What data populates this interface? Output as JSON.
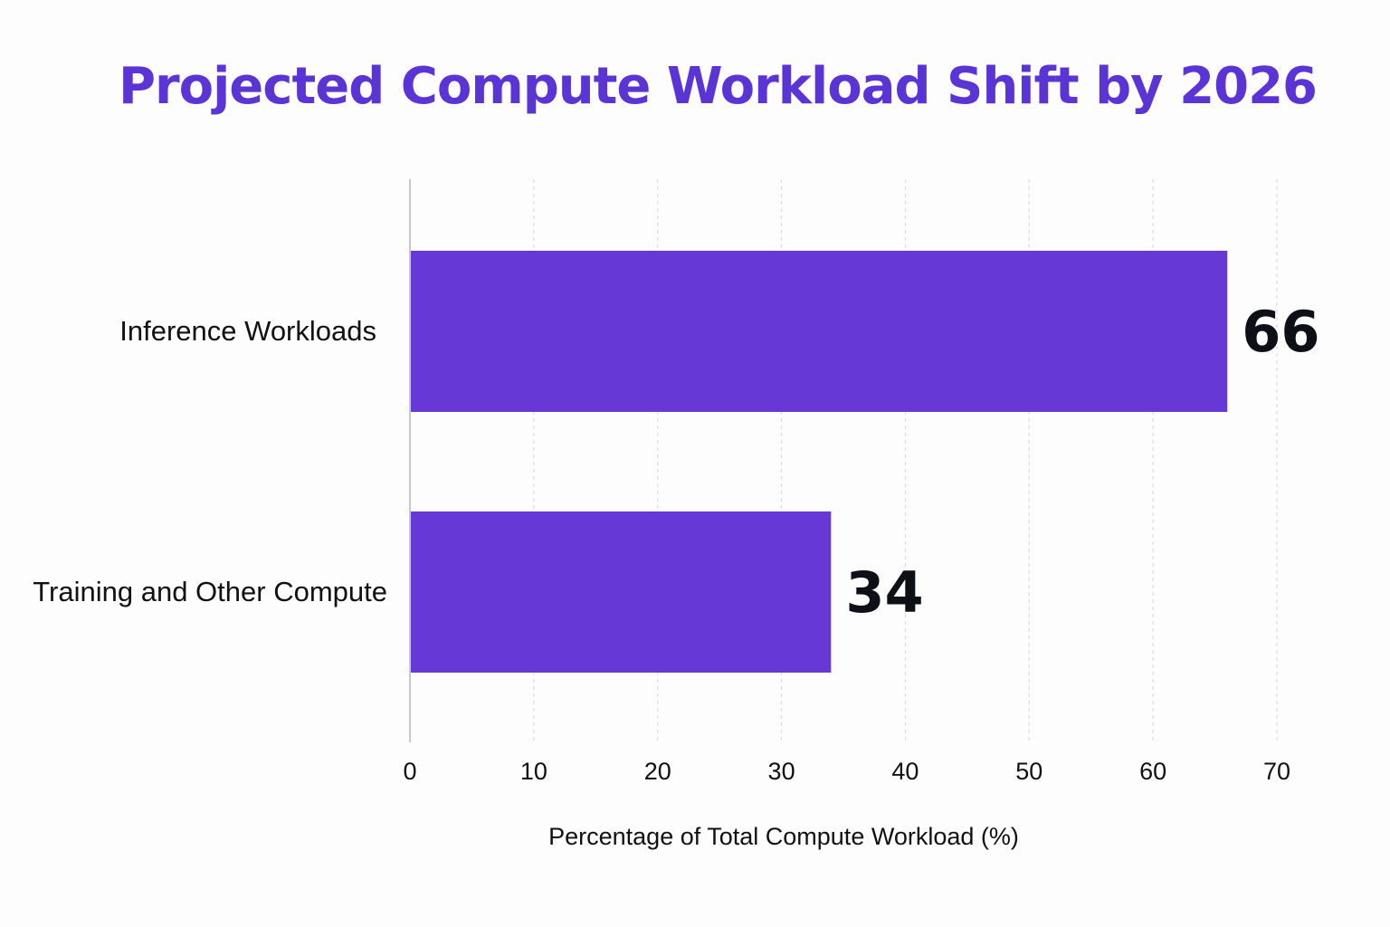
{
  "colors": {
    "title": "#5b34d6",
    "bar": "#6638d6",
    "grid": "#dcdcdc",
    "axis": "#c8c8c8",
    "value_label": "#0d1117"
  },
  "chart_data": {
    "type": "bar",
    "orientation": "horizontal",
    "title": "Projected Compute Workload Shift by 2026",
    "xlabel": "Percentage of Total Compute Workload (%)",
    "ylabel": "",
    "categories": [
      "Inference Workloads",
      "Training and Other Compute"
    ],
    "values": [
      66,
      34
    ],
    "value_labels": [
      "66",
      "34"
    ],
    "xlim": [
      0,
      70
    ],
    "xticks": [
      0,
      10,
      20,
      30,
      40,
      50,
      60,
      70
    ],
    "xtick_labels": [
      "0",
      "10",
      "20",
      "30",
      "40",
      "50",
      "60",
      "70"
    ],
    "grid": "vertical dashed",
    "legend": "none"
  }
}
